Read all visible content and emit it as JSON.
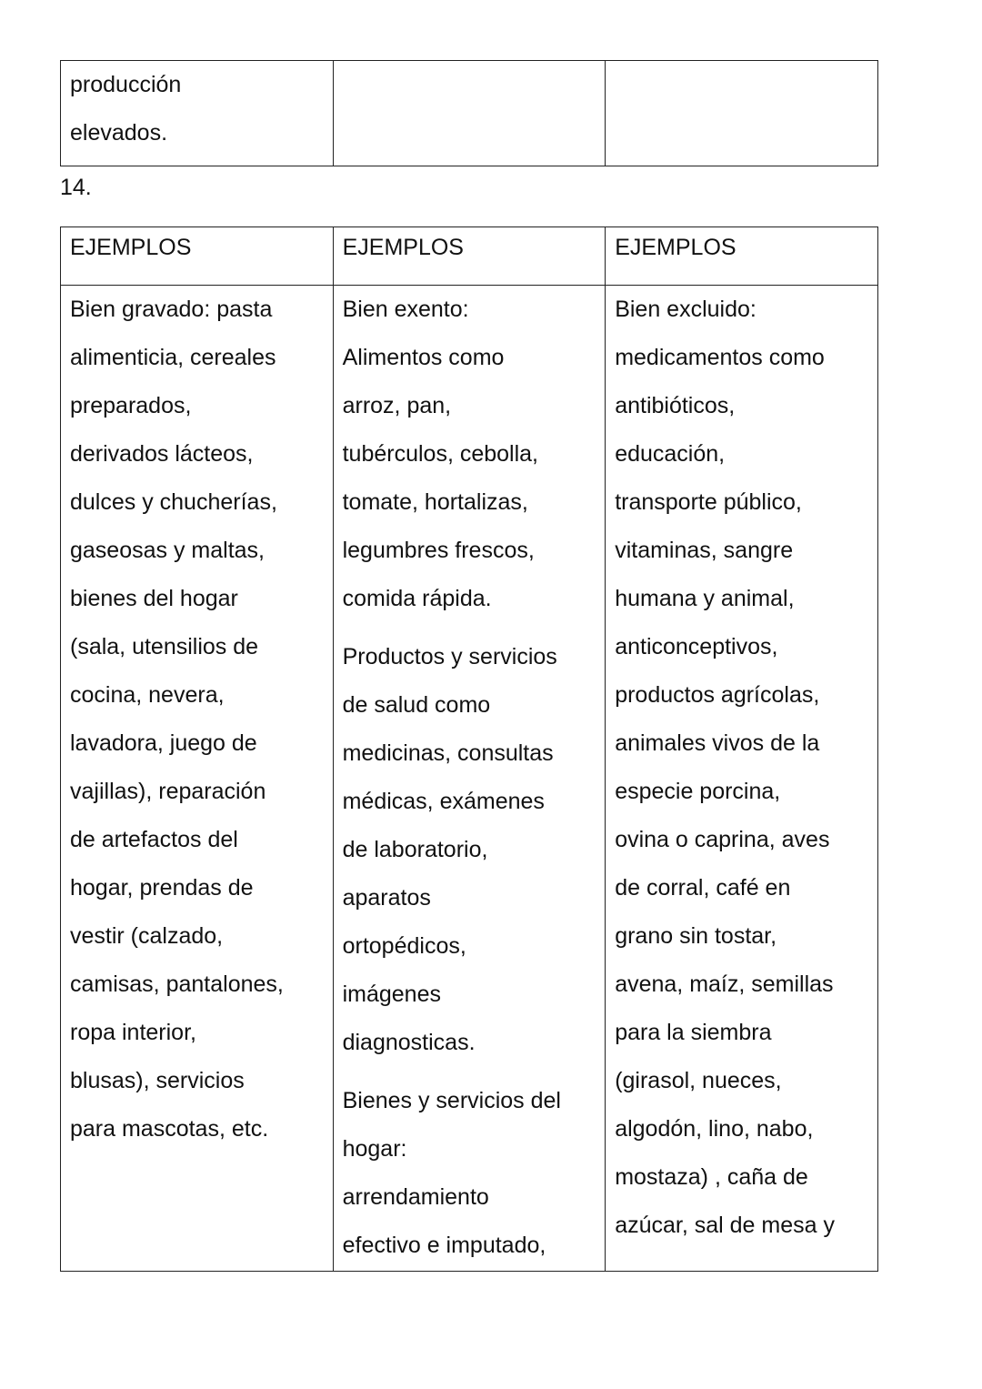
{
  "table_top": {
    "cells": [
      [
        "producción",
        "elevados."
      ],
      [],
      []
    ]
  },
  "item_number": "14.",
  "table_examples": {
    "headers": [
      "EJEMPLOS",
      "EJEMPLOS",
      "EJEMPLOS"
    ],
    "columns": [
      [
        [
          "Bien gravado: pasta",
          "alimenticia, cereales",
          "preparados,",
          "derivados lácteos,",
          "dulces y chucherías,",
          "gaseosas y maltas,",
          "bienes del hogar",
          "(sala, utensilios de",
          "cocina, nevera,",
          "lavadora, juego de",
          "vajillas), reparación",
          "de artefactos del",
          "hogar, prendas de",
          "vestir (calzado,",
          "camisas, pantalones,",
          "ropa interior,",
          "blusas), servicios",
          "para mascotas, etc."
        ]
      ],
      [
        [
          "Bien exento:",
          "Alimentos como",
          "arroz, pan,",
          "tubérculos, cebolla,",
          "tomate, hortalizas,",
          "legumbres frescos,",
          "comida rápida."
        ],
        [
          "Productos y servicios",
          "de salud como",
          "medicinas, consultas",
          "médicas, exámenes",
          "de laboratorio,",
          "aparatos",
          "ortopédicos,",
          "imágenes",
          "diagnosticas."
        ],
        [
          "Bienes y servicios del",
          "hogar:",
          "arrendamiento",
          "efectivo e imputado,"
        ]
      ],
      [
        [
          "Bien excluido:",
          "medicamentos como",
          "antibióticos,",
          "educación,",
          "transporte público,",
          "vitaminas, sangre",
          "humana y animal,",
          "anticonceptivos,",
          "productos agrícolas,",
          "animales vivos de la",
          "especie porcina,",
          "ovina o caprina, aves",
          "de corral, café en",
          "grano sin tostar,",
          "avena, maíz, semillas",
          "para la siembra",
          "(girasol, nueces,",
          "algodón, lino, nabo,",
          "mostaza) , caña de",
          "azúcar, sal de mesa y"
        ]
      ]
    ]
  }
}
